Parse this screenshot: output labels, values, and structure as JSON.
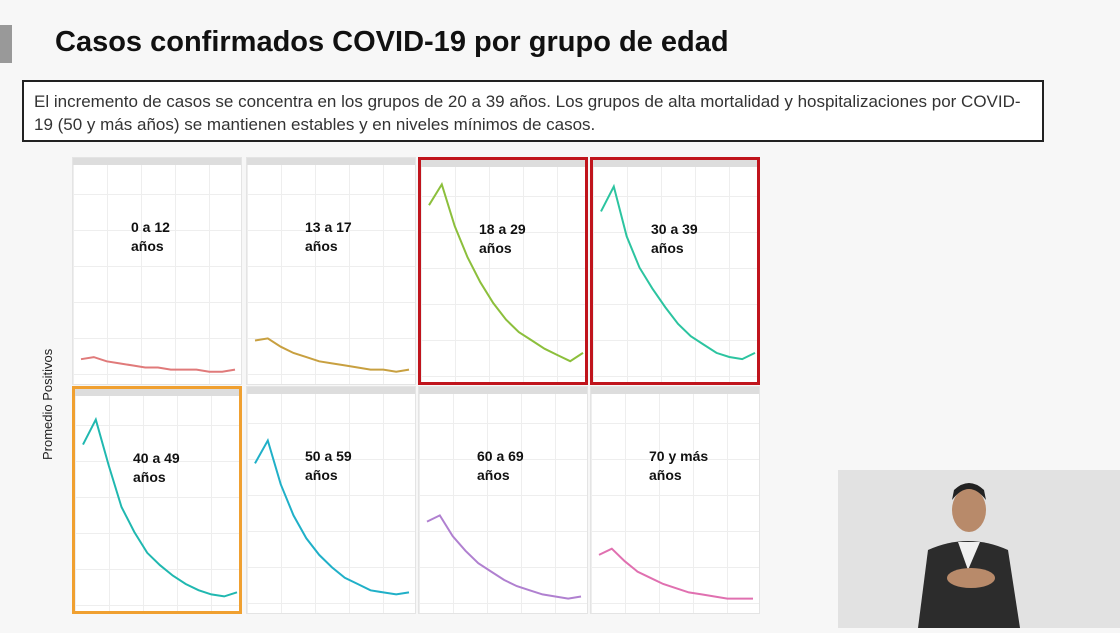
{
  "header": {
    "title": "Casos confirmados COVID-19 por grupo de edad"
  },
  "description": "El incremento de casos se concentra en los grupos de 20 a 39 años. Los grupos de alta mortalidad y hospitalizaciones por COVID-19 (50 y más años) se mantienen estables y en niveles mínimos de casos.",
  "y_label": "Promedio Positivos",
  "chart_data": [
    {
      "type": "line",
      "title": "0 a 12 años",
      "color": "#e07a7a",
      "ylim": [
        0,
        100
      ],
      "values": [
        10,
        11,
        9,
        8,
        7,
        6,
        6,
        5,
        5,
        5,
        4,
        4,
        5
      ]
    },
    {
      "type": "line",
      "title": "13 a 17 años",
      "color": "#c8a040",
      "ylim": [
        0,
        100
      ],
      "values": [
        19,
        20,
        16,
        13,
        11,
        9,
        8,
        7,
        6,
        5,
        5,
        4,
        5
      ]
    },
    {
      "type": "line",
      "title": "18 a 29 años",
      "color": "#8cbf3c",
      "ylim": [
        0,
        100
      ],
      "border_color": "#c0141c",
      "values": [
        85,
        95,
        75,
        60,
        48,
        38,
        30,
        24,
        20,
        16,
        13,
        10,
        14
      ]
    },
    {
      "type": "line",
      "title": "30 a 39 años",
      "color": "#2cc4a0",
      "ylim": [
        0,
        100
      ],
      "border_color": "#c0141c",
      "values": [
        82,
        94,
        70,
        55,
        45,
        36,
        28,
        22,
        18,
        14,
        12,
        11,
        14
      ]
    },
    {
      "type": "line",
      "title": "40 a 49 años",
      "color": "#20b8b0",
      "ylim": [
        0,
        100
      ],
      "border_color": "#f0a030",
      "values": [
        80,
        92,
        70,
        50,
        38,
        28,
        22,
        17,
        13,
        10,
        8,
        7,
        9
      ]
    },
    {
      "type": "line",
      "title": "50 a 59 años",
      "color": "#20b0c8",
      "ylim": [
        0,
        100
      ],
      "values": [
        70,
        81,
        60,
        45,
        34,
        26,
        20,
        15,
        12,
        9,
        8,
        7,
        8
      ]
    },
    {
      "type": "line",
      "title": "60 a 69 años",
      "color": "#b080d0",
      "ylim": [
        0,
        100
      ],
      "values": [
        42,
        45,
        35,
        28,
        22,
        18,
        14,
        11,
        9,
        7,
        6,
        5,
        6
      ]
    },
    {
      "type": "line",
      "title": "70 y más años",
      "color": "#e070b0",
      "ylim": [
        0,
        100
      ],
      "values": [
        26,
        29,
        23,
        18,
        15,
        12,
        10,
        8,
        7,
        6,
        5,
        5,
        5
      ]
    }
  ]
}
